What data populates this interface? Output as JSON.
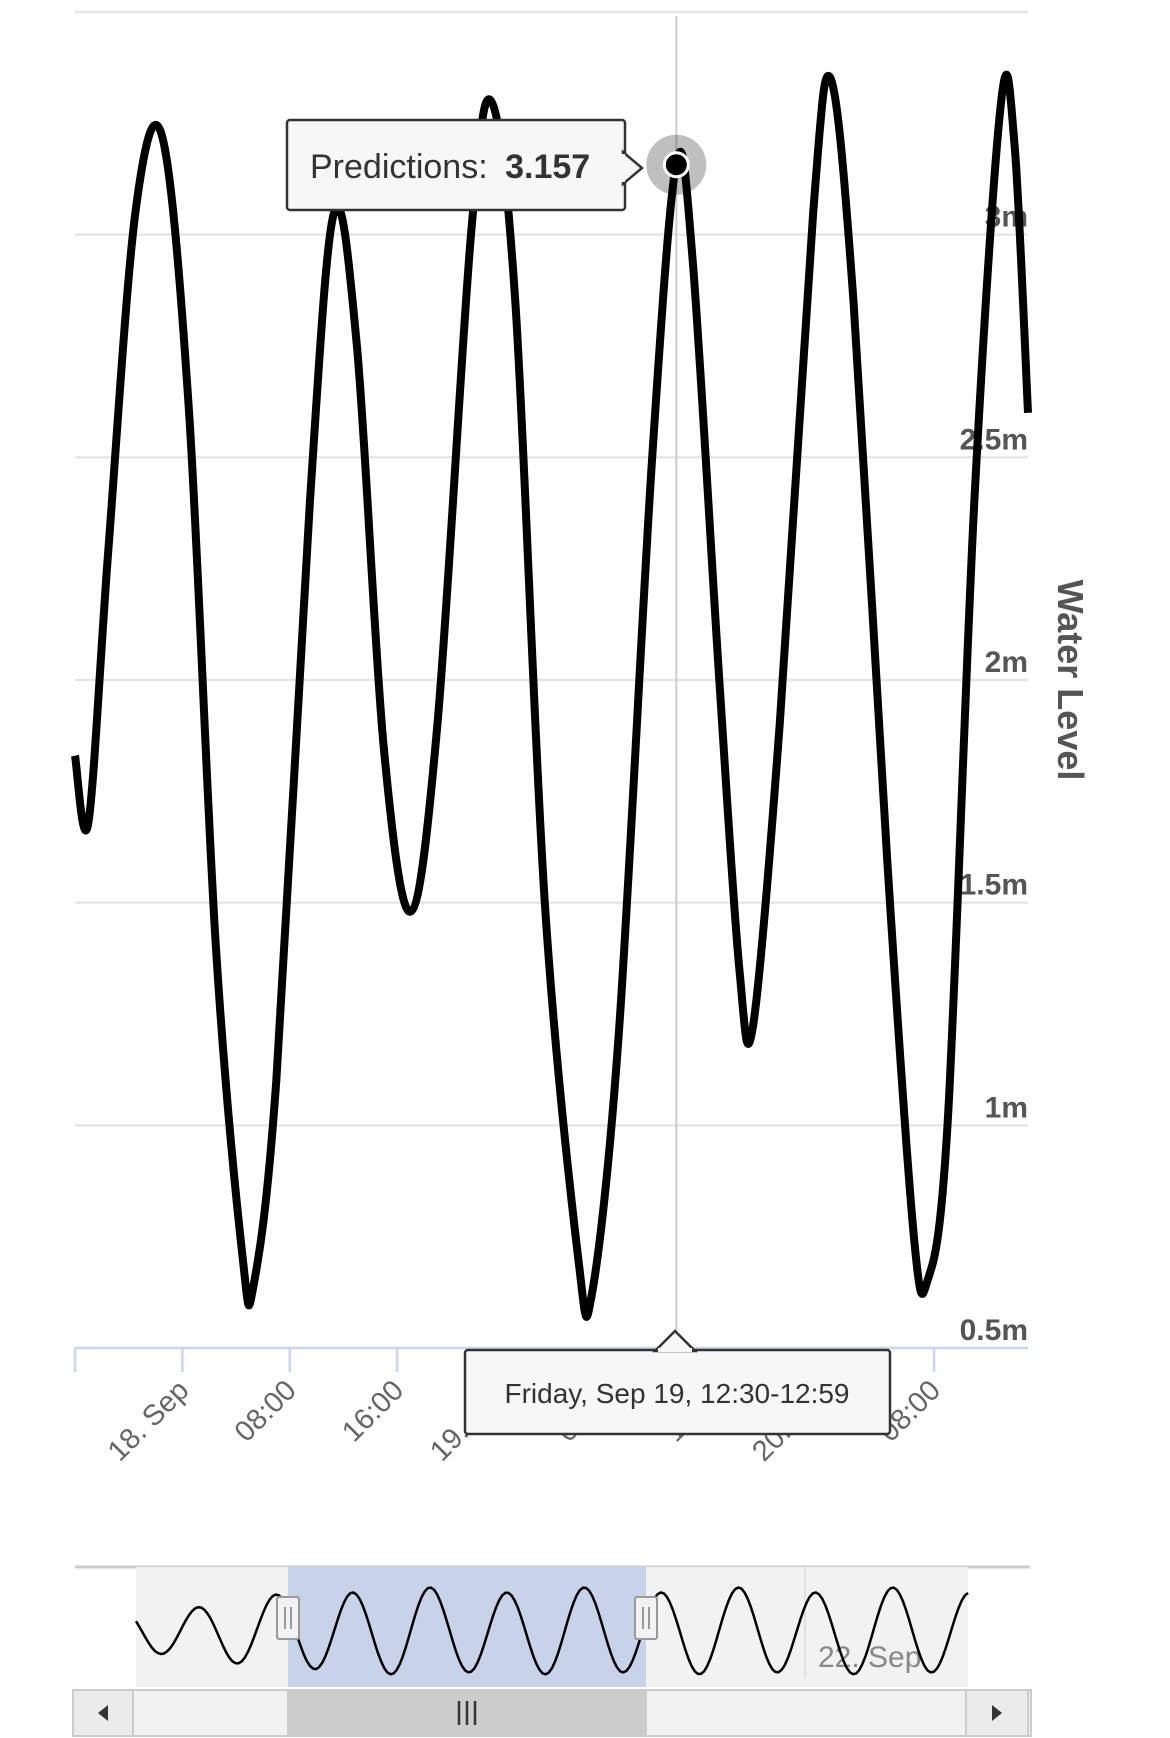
{
  "chart_data": {
    "type": "line",
    "ylabel": "Water Level",
    "xlabel": "",
    "y_ticks": [
      "0.5m",
      "1m",
      "1.5m",
      "2m",
      "2.5m",
      "3m"
    ],
    "y_tick_values": [
      0.5,
      1,
      1.5,
      2,
      2.5,
      3
    ],
    "ylim": [
      0.5,
      3.5
    ],
    "x_ticks": [
      "18. Sep",
      "08:00",
      "16:00",
      "19. Sep",
      "08:00",
      "16:00",
      "20. Sep",
      "08:00"
    ],
    "x_tick_hours": [
      0,
      8,
      16,
      24,
      32,
      40,
      48,
      56
    ],
    "x_range_hours": [
      -8,
      63
    ],
    "grid": true,
    "legend": "none",
    "series": [
      {
        "name": "Predictions",
        "color": "#000000",
        "points": [
          {
            "t": -8.0,
            "v": 1.83
          },
          {
            "t": -7.0,
            "v": 1.68
          },
          {
            "t": -5.5,
            "v": 2.3
          },
          {
            "t": -3.5,
            "v": 3.05
          },
          {
            "t": -1.5,
            "v": 3.22
          },
          {
            "t": 0.5,
            "v": 2.6
          },
          {
            "t": 2.5,
            "v": 1.4
          },
          {
            "t": 4.5,
            "v": 0.7
          },
          {
            "t": 5.3,
            "v": 0.64
          },
          {
            "t": 7.0,
            "v": 1.1
          },
          {
            "t": 9.5,
            "v": 2.4
          },
          {
            "t": 11.3,
            "v": 3.05
          },
          {
            "t": 13.0,
            "v": 2.75
          },
          {
            "t": 15.0,
            "v": 1.85
          },
          {
            "t": 17.0,
            "v": 1.48
          },
          {
            "t": 19.0,
            "v": 1.9
          },
          {
            "t": 21.5,
            "v": 3.0
          },
          {
            "t": 23.0,
            "v": 3.3
          },
          {
            "t": 24.8,
            "v": 2.85
          },
          {
            "t": 27.0,
            "v": 1.5
          },
          {
            "t": 29.5,
            "v": 0.7
          },
          {
            "t": 30.5,
            "v": 0.62
          },
          {
            "t": 32.5,
            "v": 1.2
          },
          {
            "t": 35.0,
            "v": 2.5
          },
          {
            "t": 36.8,
            "v": 3.16
          },
          {
            "t": 38.0,
            "v": 2.95
          },
          {
            "t": 40.0,
            "v": 2.0
          },
          {
            "t": 41.5,
            "v": 1.35
          },
          {
            "t": 42.5,
            "v": 1.22
          },
          {
            "t": 44.5,
            "v": 1.9
          },
          {
            "t": 47.0,
            "v": 3.05
          },
          {
            "t": 48.3,
            "v": 3.35
          },
          {
            "t": 50.0,
            "v": 2.85
          },
          {
            "t": 52.5,
            "v": 1.6
          },
          {
            "t": 54.5,
            "v": 0.75
          },
          {
            "t": 55.5,
            "v": 0.65
          },
          {
            "t": 57.0,
            "v": 1.0
          },
          {
            "t": 59.0,
            "v": 2.4
          },
          {
            "t": 61.0,
            "v": 3.3
          },
          {
            "t": 62.0,
            "v": 3.2
          },
          {
            "t": 63.0,
            "v": 2.6
          }
        ]
      }
    ],
    "tooltip": {
      "series_label": "Predictions:",
      "value": "3.157",
      "point_hour": 36.8,
      "date_label": "Friday, Sep 19, 12:30-12:59"
    },
    "navigator": {
      "tick_label": "22. Sep",
      "range_hours": [
        -24,
        110
      ],
      "selected_hours": [
        -8,
        63
      ]
    }
  }
}
